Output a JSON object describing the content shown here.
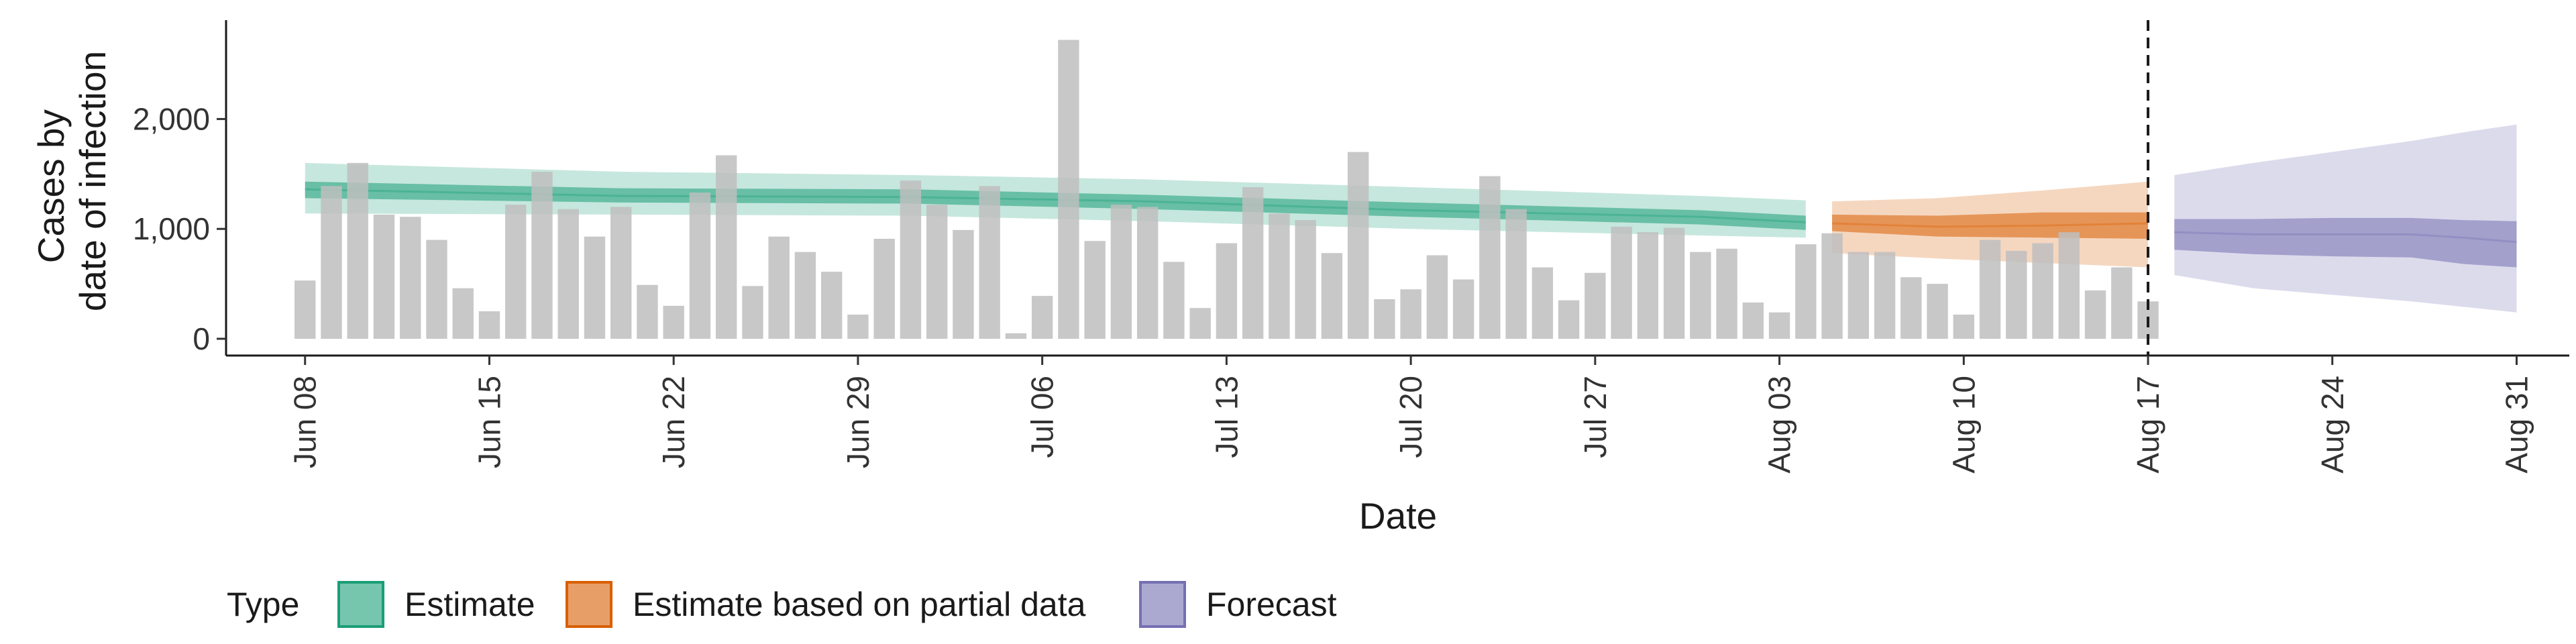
{
  "chart_data": {
    "type": "bar",
    "xlabel": "Date",
    "ylabel": [
      "Cases by",
      "date of infection"
    ],
    "ylim": [
      0,
      2900
    ],
    "y_ticks": [
      0,
      1000,
      2000
    ],
    "y_tick_labels": [
      "0",
      "1,000",
      "2,000"
    ],
    "x_range": [
      "2020-06-05",
      "2020-09-02"
    ],
    "x_ticks": [
      "2020-06-08",
      "2020-06-15",
      "2020-06-22",
      "2020-06-29",
      "2020-07-06",
      "2020-07-13",
      "2020-07-20",
      "2020-07-27",
      "2020-08-03",
      "2020-08-10",
      "2020-08-17",
      "2020-08-24",
      "2020-08-31"
    ],
    "x_tick_labels": [
      "Jun 08",
      "Jun 15",
      "Jun 22",
      "Jun 29",
      "Jul 06",
      "Jul 13",
      "Jul 20",
      "Jul 27",
      "Aug 03",
      "Aug 10",
      "Aug 17",
      "Aug 24",
      "Aug 31"
    ],
    "vline_date": "2020-08-17",
    "bars": {
      "start_date": "2020-06-08",
      "values": [
        530,
        1390,
        1600,
        1130,
        1110,
        900,
        460,
        250,
        1220,
        1520,
        1180,
        930,
        1200,
        490,
        300,
        1330,
        1670,
        480,
        930,
        790,
        610,
        220,
        910,
        1440,
        1220,
        990,
        1390,
        50,
        390,
        2720,
        890,
        1220,
        1200,
        700,
        280,
        870,
        1380,
        1140,
        1080,
        780,
        1700,
        360,
        450,
        760,
        540,
        1480,
        1180,
        650,
        350,
        600,
        1020,
        970,
        1010,
        790,
        820,
        330,
        240,
        860,
        960,
        790,
        790,
        560,
        500,
        220,
        900,
        800,
        870,
        970,
        440,
        650,
        340
      ],
      "color": "#bebebe"
    },
    "series": [
      {
        "name": "Estimate",
        "color": "#1b9e77",
        "dates": [
          "2020-06-08",
          "2020-06-20",
          "2020-07-01",
          "2020-07-10",
          "2020-07-20",
          "2020-07-31",
          "2020-08-04"
        ],
        "median": [
          1360,
          1300,
          1290,
          1250,
          1170,
          1110,
          1060
        ],
        "inner_lower": [
          1280,
          1240,
          1230,
          1180,
          1110,
          1040,
          990
        ],
        "inner_upper": [
          1430,
          1370,
          1360,
          1310,
          1240,
          1170,
          1120
        ],
        "outer_lower": [
          1140,
          1130,
          1120,
          1070,
          1000,
          940,
          920
        ],
        "outer_upper": [
          1600,
          1520,
          1490,
          1450,
          1380,
          1300,
          1260
        ]
      },
      {
        "name": "Estimate based on partial data",
        "color": "#d95f02",
        "dates": [
          "2020-08-05",
          "2020-08-09",
          "2020-08-13",
          "2020-08-17"
        ],
        "median": [
          1050,
          1020,
          1030,
          1050
        ],
        "inner_lower": [
          980,
          930,
          920,
          910
        ],
        "inner_upper": [
          1130,
          1120,
          1150,
          1150
        ],
        "outer_lower": [
          780,
          730,
          690,
          650
        ],
        "outer_upper": [
          1250,
          1280,
          1350,
          1430
        ]
      },
      {
        "name": "Forecast",
        "color": "#7570b3",
        "dates": [
          "2020-08-18",
          "2020-08-21",
          "2020-08-24",
          "2020-08-27",
          "2020-08-29",
          "2020-08-31"
        ],
        "median": [
          970,
          950,
          950,
          950,
          920,
          880
        ],
        "inner_lower": [
          810,
          770,
          750,
          740,
          680,
          650
        ],
        "inner_upper": [
          1090,
          1090,
          1100,
          1100,
          1080,
          1070
        ],
        "outer_lower": [
          580,
          460,
          400,
          340,
          290,
          240
        ],
        "outer_upper": [
          1490,
          1600,
          1700,
          1800,
          1880,
          1950
        ]
      }
    ],
    "legend": {
      "title": "Type",
      "position": "bottom",
      "entries": [
        "Estimate",
        "Estimate based on partial data",
        "Forecast"
      ]
    }
  }
}
